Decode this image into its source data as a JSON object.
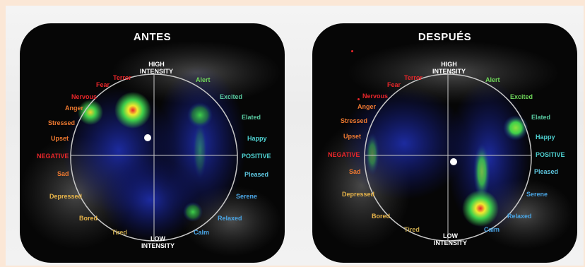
{
  "panels": [
    {
      "title": "ANTES",
      "axis": {
        "high": "HIGH\nINTENSITY",
        "low": "LOW\nINTENSITY",
        "negative": "NEGATIVE",
        "positive": "POSITIVE"
      },
      "emotions": {
        "alert": "Alert",
        "excited": "Excited",
        "elated": "Elated",
        "happy": "Happy",
        "pleased": "Pleased",
        "serene": "Serene",
        "relaxed": "Relaxed",
        "calm": "Calm",
        "tired": "Tired",
        "bored": "Bored",
        "depressed": "Depressed",
        "sad": "Sad",
        "upset": "Upset",
        "stressed": "Stressed",
        "anger": "Anger",
        "nervous": "Nervous",
        "fear": "Fear",
        "terror": "Terror"
      }
    },
    {
      "title": "DESPUÉS",
      "axis": {
        "high": "HIGH\nINTENSITY",
        "low": "LOW\nINTENSITY",
        "negative": "NEGATIVE",
        "positive": "POSITIVE"
      },
      "emotions": {
        "alert": "Alert",
        "excited": "Excited",
        "elated": "Elated",
        "happy": "Happy",
        "pleased": "Pleased",
        "serene": "Serene",
        "relaxed": "Relaxed",
        "calm": "Calm",
        "tired": "Tired",
        "bored": "Bored",
        "depressed": "Depressed",
        "sad": "Sad",
        "upset": "Upset",
        "stressed": "Stressed",
        "anger": "Anger",
        "nervous": "Nervous",
        "fear": "Fear",
        "terror": "Terror"
      }
    }
  ],
  "colors": {
    "background": "#060606",
    "circle": "#c8c8c8",
    "hot": "#e8262a",
    "warm": "#f2e830",
    "mid": "#3fd04a",
    "cool": "#1a2aa0"
  }
}
